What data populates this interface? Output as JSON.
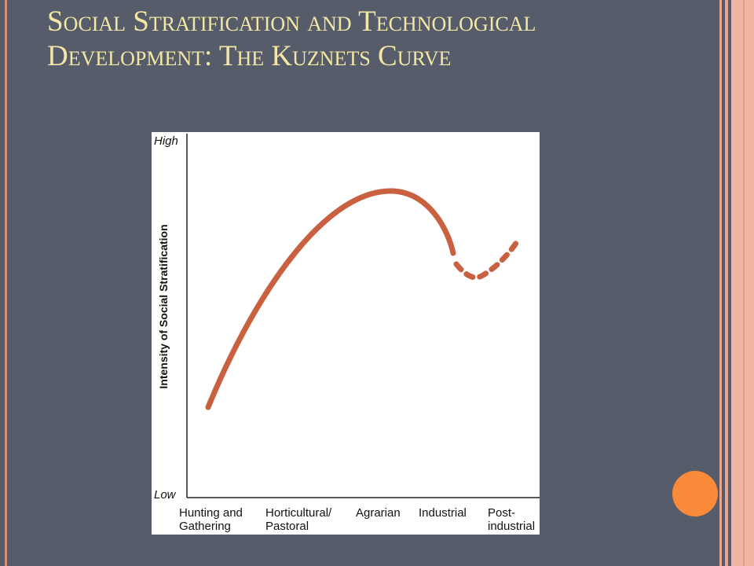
{
  "slide": {
    "title": "Social Stratification and Technological Development: The Kuznets Curve",
    "figure": {
      "y_axis_label": "Intensity of Social Stratification",
      "y_high": "High",
      "y_low": "Low",
      "categories": [
        [
          "Hunting and",
          "Gathering"
        ],
        [
          "Horticultural/",
          "Pastoral"
        ],
        [
          "Agrarian"
        ],
        [
          "Industrial"
        ],
        [
          "Post-",
          "industrial"
        ]
      ]
    }
  }
}
